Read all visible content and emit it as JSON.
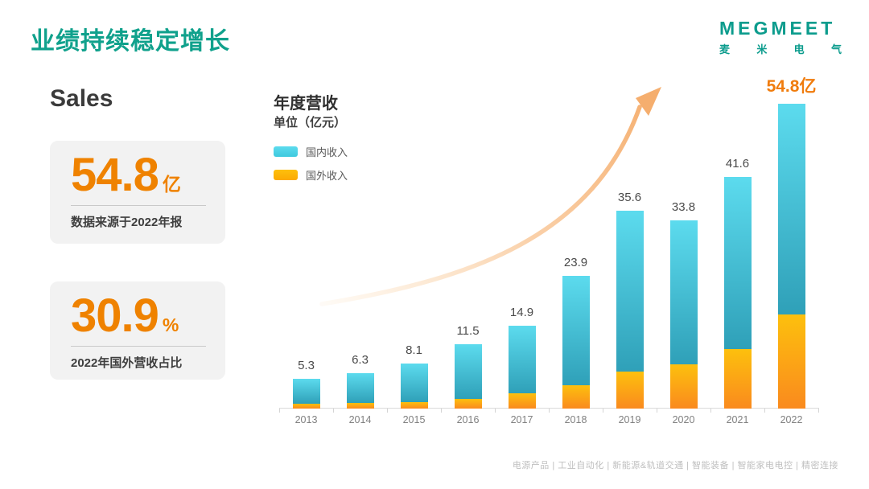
{
  "slide": {
    "title": "业绩持续稳定增长",
    "logo": {
      "brand": "MEGMEET",
      "chinese": "麦米电气"
    },
    "footer": "电源产品 | 工业自动化 | 新能源&轨道交通 | 智能装备 | 智能家电电控 | 精密连接"
  },
  "left_panel": {
    "heading": "Sales",
    "cards": [
      {
        "value": "54.8",
        "unit": "亿",
        "caption": "数据来源于2022年报"
      },
      {
        "value": "30.9",
        "unit": "%",
        "caption": "2022年国外营收占比"
      }
    ]
  },
  "chart_data": {
    "type": "bar",
    "stacked": true,
    "title": "年度营收",
    "unit_label": "单位（亿元）",
    "categories": [
      "2013",
      "2014",
      "2015",
      "2016",
      "2017",
      "2018",
      "2019",
      "2020",
      "2021",
      "2022"
    ],
    "series": [
      {
        "name": "国内收入",
        "values": [
          4.4,
          5.3,
          6.9,
          9.8,
          12.1,
          19.7,
          29.0,
          25.8,
          30.9,
          37.9
        ],
        "color_top": "#5CDBEE",
        "color_bottom": "#2FA0B8",
        "swatch": "#3EC9DE"
      },
      {
        "name": "国外收入",
        "values": [
          0.9,
          1.0,
          1.2,
          1.7,
          2.8,
          4.2,
          6.6,
          8.0,
          10.7,
          16.9
        ],
        "color_top": "#FDC00D",
        "color_bottom": "#FA8A1E",
        "swatch": "#FCA903"
      }
    ],
    "totals": [
      5.3,
      6.3,
      8.1,
      11.5,
      14.9,
      23.9,
      35.6,
      33.8,
      41.6,
      54.8
    ],
    "total_labels": [
      "5.3",
      "6.3",
      "8.1",
      "11.5",
      "14.9",
      "23.9",
      "35.6",
      "33.8",
      "41.6",
      "54.8亿"
    ],
    "ylim": [
      0,
      58
    ],
    "grid": false,
    "legend_position": "top-left"
  },
  "colors": {
    "brand_teal": "#10A18C",
    "accent_orange": "#EF8200",
    "highlight_label": "#F07C0D",
    "card_bg": "#F2F2F2",
    "value_label": "#4A4A4A",
    "axis_label": "#808080",
    "axis_line": "#DBDBDB",
    "footer_text": "#BFBFBF",
    "arrow": "#F6B26B"
  }
}
